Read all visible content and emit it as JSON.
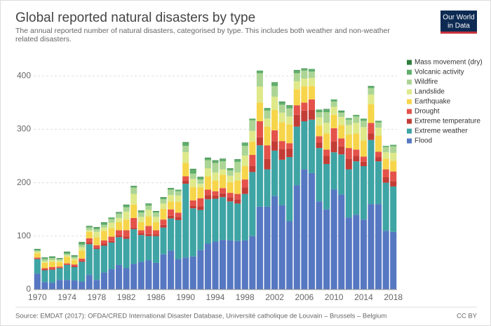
{
  "chart_data": {
    "type": "stacked-bar",
    "title": "Global reported natural disasters by type",
    "subtitle": "The annual reported number of natural disasters, categorised by type. This includes both weather and non-weather related disasters.",
    "source": "Source: EMDAT (2017): OFDA/CRED International Disaster Database, Université catholique de Louvain – Brussels – Belgium",
    "license": "CC BY",
    "logo": [
      "Our World",
      "in Data"
    ],
    "legend": "right",
    "grid": true,
    "ylim": [
      0,
      420
    ],
    "yticks": [
      0,
      100,
      200,
      300,
      400
    ],
    "categories": [
      "1970",
      null,
      null,
      null,
      "1974",
      null,
      null,
      null,
      "1978",
      null,
      null,
      null,
      "1982",
      null,
      null,
      null,
      "1986",
      null,
      null,
      null,
      "1990",
      null,
      null,
      null,
      "1994",
      null,
      null,
      null,
      "1998",
      null,
      null,
      null,
      "2002",
      null,
      null,
      null,
      "2006",
      null,
      null,
      null,
      "2010",
      null,
      null,
      null,
      "2014",
      null,
      null,
      null,
      "2018"
    ],
    "series": [
      {
        "name": "Flood",
        "color": "#5677c2",
        "values": [
          30,
          14,
          13,
          18,
          18,
          17,
          15,
          27,
          18,
          32,
          38,
          46,
          40,
          48,
          52,
          55,
          50,
          66,
          73,
          57,
          60,
          62,
          74,
          86,
          90,
          93,
          92,
          91,
          92,
          100,
          155,
          155,
          175,
          158,
          128,
          195,
          225,
          218,
          165,
          150,
          187,
          178,
          135,
          140,
          131,
          160,
          160,
          110,
          108
        ]
      },
      {
        "name": "Extreme weather",
        "color": "#3ea4a4",
        "values": [
          27,
          22,
          24,
          22,
          28,
          25,
          37,
          58,
          58,
          50,
          50,
          52,
          55,
          65,
          50,
          45,
          50,
          50,
          60,
          73,
          138,
          90,
          75,
          83,
          80,
          80,
          73,
          70,
          87,
          120,
          115,
          70,
          85,
          85,
          120,
          110,
          90,
          100,
          100,
          85,
          70,
          75,
          90,
          100,
          100,
          120,
          80,
          90,
          85
        ]
      },
      {
        "name": "Extreme temperature",
        "color": "#c33d36",
        "values": [
          1,
          2,
          2,
          1,
          1,
          2,
          2,
          3,
          2,
          4,
          3,
          3,
          4,
          3,
          3,
          4,
          3,
          5,
          5,
          6,
          6,
          5,
          7,
          8,
          6,
          7,
          8,
          8,
          12,
          12,
          15,
          20,
          18,
          20,
          16,
          22,
          20,
          18,
          10,
          15,
          20,
          15,
          20,
          10,
          8,
          12,
          8,
          10,
          10
        ]
      },
      {
        "name": "Drought",
        "color": "#e4524a",
        "values": [
          2,
          2,
          3,
          2,
          2,
          3,
          4,
          8,
          5,
          6,
          8,
          10,
          12,
          18,
          6,
          15,
          8,
          10,
          12,
          8,
          8,
          10,
          15,
          10,
          8,
          10,
          8,
          10,
          15,
          20,
          30,
          25,
          20,
          15,
          10,
          18,
          15,
          20,
          12,
          12,
          25,
          15,
          20,
          12,
          10,
          20,
          10,
          15,
          18
        ]
      },
      {
        "name": "Earthquake",
        "color": "#f7d54a",
        "values": [
          8,
          10,
          10,
          8,
          12,
          8,
          15,
          12,
          15,
          18,
          16,
          15,
          20,
          25,
          15,
          18,
          15,
          20,
          15,
          20,
          25,
          25,
          20,
          25,
          20,
          25,
          20,
          25,
          25,
          25,
          35,
          35,
          38,
          35,
          35,
          30,
          30,
          25,
          20,
          30,
          25,
          25,
          25,
          30,
          30,
          35,
          30,
          20,
          20
        ]
      },
      {
        "name": "Landslide",
        "color": "#dfe98a",
        "values": [
          3,
          3,
          3,
          3,
          3,
          3,
          6,
          3,
          10,
          6,
          10,
          8,
          15,
          20,
          10,
          12,
          10,
          10,
          12,
          12,
          20,
          15,
          7,
          15,
          15,
          10,
          12,
          15,
          20,
          20,
          30,
          15,
          25,
          18,
          15,
          15,
          15,
          15,
          15,
          20,
          15,
          15,
          18,
          20,
          25,
          18,
          15,
          12,
          15
        ]
      },
      {
        "name": "Wildfire",
        "color": "#acd595",
        "values": [
          2,
          4,
          4,
          3,
          3,
          3,
          5,
          5,
          5,
          5,
          7,
          8,
          8,
          12,
          8,
          8,
          8,
          8,
          10,
          8,
          12,
          10,
          8,
          15,
          18,
          15,
          10,
          20,
          18,
          20,
          25,
          15,
          20,
          15,
          15,
          15,
          15,
          12,
          10,
          20,
          10,
          8,
          10,
          12,
          12,
          12,
          10,
          10,
          12
        ]
      },
      {
        "name": "Volcanic activity",
        "color": "#5fae6c",
        "values": [
          2,
          2,
          2,
          1,
          3,
          2,
          4,
          2,
          3,
          4,
          3,
          2,
          4,
          2,
          3,
          3,
          2,
          3,
          2,
          3,
          6,
          8,
          4,
          4,
          4,
          4,
          3,
          4,
          5,
          3,
          5,
          5,
          6,
          5,
          5,
          5,
          3,
          5,
          5,
          5,
          4,
          3,
          3,
          3,
          4,
          3,
          3,
          2,
          3
        ]
      },
      {
        "name": "Mass movement (dry)",
        "color": "#2e7d3c",
        "values": [
          1,
          1,
          1,
          1,
          1,
          1,
          1,
          1,
          1,
          1,
          0,
          1,
          1,
          1,
          1,
          1,
          1,
          1,
          1,
          0,
          1,
          1,
          1,
          1,
          1,
          1,
          1,
          1,
          1,
          0,
          0,
          0,
          1,
          1,
          1,
          1,
          1,
          0,
          0,
          1,
          0,
          1,
          0,
          0,
          0,
          1,
          0,
          0,
          0
        ]
      }
    ]
  }
}
